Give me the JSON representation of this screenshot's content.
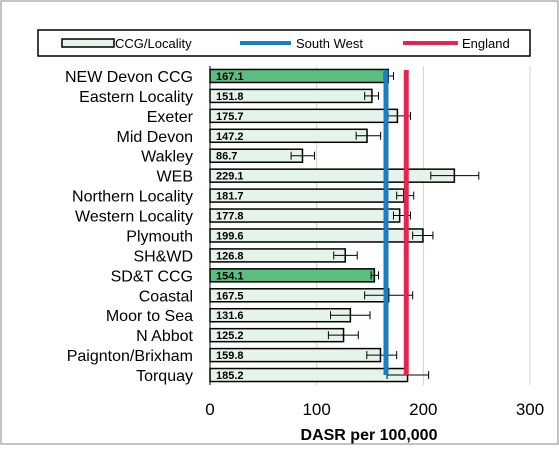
{
  "chart_data": {
    "type": "bar",
    "orientation": "horizontal",
    "categories": [
      "NEW Devon CCG",
      "Eastern Locality",
      "Exeter",
      "Mid Devon",
      "Wakley",
      "WEB",
      "Northern Locality",
      "Western Locality",
      "Plymouth",
      "SH&WD",
      "SD&T CCG",
      "Coastal",
      "Moor to Sea",
      "N Abbot",
      "Paignton/Brixham",
      "Torquay"
    ],
    "values": [
      167.1,
      151.8,
      175.7,
      147.2,
      86.7,
      229.1,
      181.7,
      177.8,
      199.6,
      126.8,
      154.1,
      167.5,
      131.6,
      125.2,
      159.8,
      185.2
    ],
    "value_labels": [
      "167.1",
      "151.8",
      "175.7",
      "147.2",
      "86.7",
      "229.1",
      "181.7",
      "177.8",
      "199.6",
      "126.8",
      "154.1",
      "167.5",
      "131.6",
      "125.2",
      "159.8",
      "185.2"
    ],
    "ci_lower": [
      163,
      145,
      167,
      137,
      76,
      207,
      175,
      172,
      190,
      116,
      151,
      145,
      113,
      111,
      147,
      166
    ],
    "ci_upper": [
      172,
      158,
      188,
      160,
      98,
      252,
      191,
      188,
      209,
      138,
      158,
      190,
      150,
      139,
      175,
      205
    ],
    "highlight": [
      true,
      false,
      false,
      false,
      false,
      false,
      false,
      false,
      false,
      false,
      true,
      false,
      false,
      false,
      false,
      false
    ],
    "xlabel": "DASR per 100,000",
    "xlim": [
      0,
      300
    ],
    "xticks": [
      "0",
      "100",
      "200",
      "300"
    ],
    "xtick_values": [
      0,
      100,
      200,
      300
    ],
    "grid": true,
    "legend_position": "top",
    "legend": {
      "bar_label": "CCG/Locality",
      "south_west_label": "South West",
      "england_label": "England"
    },
    "reference_lines": [
      {
        "label": "South West",
        "value": 165
      },
      {
        "label": "England",
        "value": 184
      }
    ],
    "colors": {
      "bar_fill": "#e4f4e8",
      "bar_highlight": "#5bbd7f",
      "south_west": "#1a7ec4",
      "england": "#e8244e"
    }
  }
}
